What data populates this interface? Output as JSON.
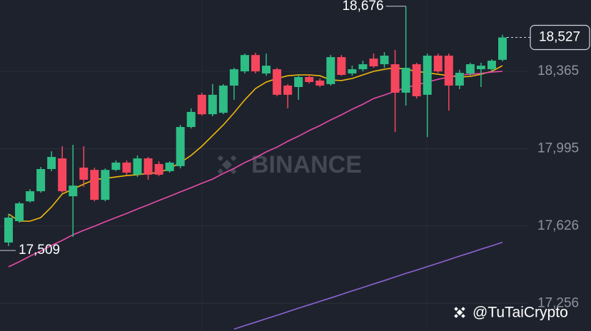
{
  "chart_data": {
    "type": "candlestick",
    "ylim": [
      17124,
      18706
    ],
    "yticks": [
      {
        "value": 17256,
        "label": "17,256"
      },
      {
        "value": 17626,
        "label": "17,626"
      },
      {
        "value": 17995,
        "label": "17,995"
      },
      {
        "value": 18365,
        "label": "18,365"
      }
    ],
    "grid": true,
    "up_color": "#2ebd85",
    "down_color": "#f6465d",
    "open": [
      17547,
      17649,
      17744,
      17792,
      17898,
      17949,
      17768,
      17905,
      17894,
      17751,
      17894,
      17929,
      17871,
      17949,
      17922,
      17888,
      17912,
      18099,
      18253,
      18160,
      18167,
      18297,
      18365,
      18443,
      18355,
      18375,
      18297,
      18290,
      18338,
      18321,
      18304,
      18433,
      18355,
      18375,
      18426,
      18399,
      18399,
      18263,
      18399,
      18253,
      18440,
      18440,
      18297,
      18355,
      18375,
      18375,
      18420
    ],
    "high": [
      17683,
      17741,
      17802,
      17908,
      17983,
      18007,
      18014,
      18007,
      17905,
      17901,
      17939,
      17939,
      17963,
      17956,
      17935,
      17935,
      18109,
      18188,
      18263,
      18304,
      18304,
      18382,
      18450,
      18454,
      18450,
      18382,
      18304,
      18348,
      18348,
      18331,
      18443,
      18443,
      18392,
      18416,
      18450,
      18457,
      18467,
      18676,
      18406,
      18450,
      18450,
      18450,
      18372,
      18406,
      18406,
      18423,
      18540
    ],
    "low": [
      17530,
      17642,
      17738,
      17785,
      17888,
      17785,
      17574,
      17813,
      17744,
      17744,
      17888,
      17871,
      17860,
      17847,
      17864,
      17881,
      17901,
      18092,
      18154,
      18150,
      18160,
      18229,
      18355,
      18355,
      18344,
      18246,
      18188,
      18229,
      18307,
      18290,
      18297,
      18344,
      18344,
      18365,
      18382,
      18382,
      18075,
      18201,
      18235,
      18051,
      18358,
      18177,
      18280,
      18344,
      18290,
      18365,
      18413
    ],
    "close": [
      17666,
      17734,
      17792,
      17898,
      17956,
      17792,
      17819,
      17847,
      17751,
      17894,
      17929,
      17881,
      17949,
      17871,
      17871,
      17929,
      18099,
      18171,
      18160,
      18253,
      18297,
      18375,
      18443,
      18365,
      18392,
      18253,
      18253,
      18338,
      18314,
      18297,
      18433,
      18348,
      18375,
      18399,
      18389,
      18440,
      18263,
      18382,
      18246,
      18440,
      18365,
      18297,
      18358,
      18399,
      18392,
      18416,
      18527
    ],
    "moving_averages": [
      {
        "color": "#f0b90b",
        "values": [
          17683,
          17649,
          17649,
          17666,
          17717,
          17779,
          17802,
          17826,
          17847,
          17854,
          17860,
          17867,
          17871,
          17877,
          17881,
          17901,
          17929,
          17963,
          18007,
          18058,
          18109,
          18167,
          18229,
          18283,
          18314,
          18331,
          18344,
          18348,
          18348,
          18344,
          18324,
          18321,
          18331,
          18348,
          18365,
          18375,
          18382,
          18375,
          18365,
          18358,
          18351,
          18344,
          18338,
          18341,
          18351,
          18365,
          18392
        ]
      },
      {
        "color": "#e84ba8",
        "values": [
          17431,
          17455,
          17482,
          17506,
          17533,
          17557,
          17584,
          17605,
          17625,
          17646,
          17666,
          17686,
          17707,
          17727,
          17748,
          17768,
          17789,
          17809,
          17830,
          17850,
          17877,
          17901,
          17929,
          17952,
          17980,
          18003,
          18031,
          18055,
          18082,
          18106,
          18133,
          18157,
          18184,
          18208,
          18235,
          18252,
          18270,
          18287,
          18300,
          18314,
          18327,
          18338,
          18348,
          18351,
          18355,
          18362,
          18365
        ]
      },
      {
        "color": "#8e63d4",
        "values": [
          null,
          null,
          null,
          null,
          null,
          null,
          null,
          null,
          null,
          null,
          null,
          null,
          null,
          null,
          null,
          null,
          null,
          null,
          null,
          null,
          null,
          17133,
          17150,
          17166,
          17183,
          17199,
          17216,
          17233,
          17249,
          17266,
          17282,
          17299,
          17316,
          17332,
          17349,
          17365,
          17382,
          17399,
          17415,
          17432,
          17448,
          17465,
          17482,
          17498,
          17515,
          17531,
          17548
        ]
      }
    ],
    "annotations": [
      {
        "label": "18,676",
        "value": 18676
      },
      {
        "label": "17,509",
        "value": 17509
      }
    ],
    "last_price": {
      "label": "18,527",
      "value": 18527
    }
  },
  "watermark": "BINANCE",
  "credit": "@TuTaiCrypto"
}
